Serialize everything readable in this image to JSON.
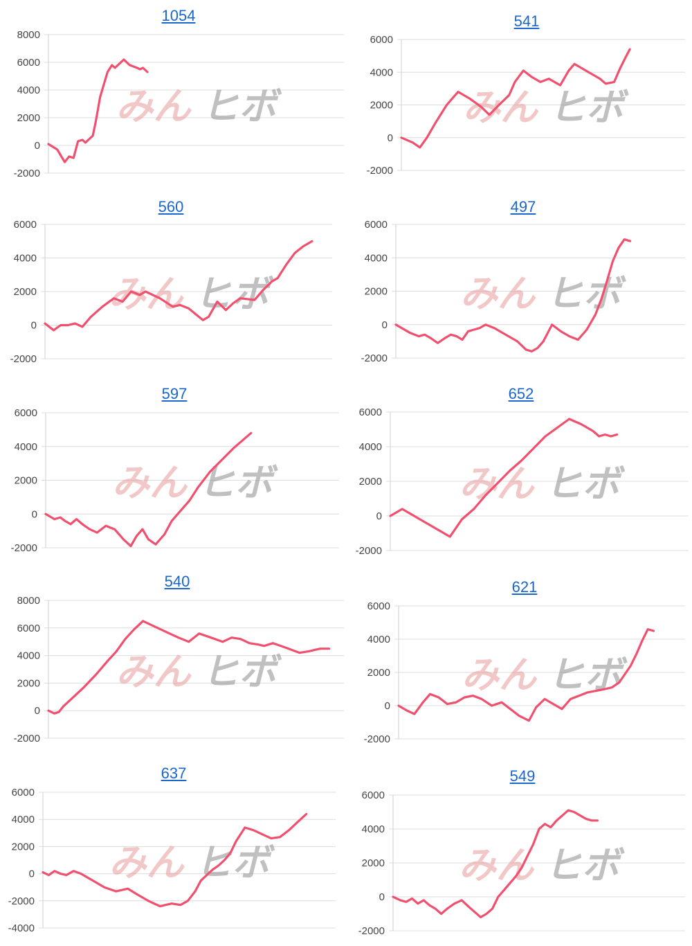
{
  "watermark": {
    "part1": "みん",
    "part2": "ヒボ",
    "color1": "#e79a9a",
    "color2": "#8e8e8e"
  },
  "colors": {
    "line": "#f0506e",
    "title_link": "#1a66cc",
    "grid": "#dcdcdc"
  },
  "chart_data": [
    {
      "type": "line",
      "title": "1054",
      "ylim": [
        -2000,
        8000
      ],
      "yticks": [
        -2000,
        0,
        2000,
        4000,
        6000,
        8000
      ],
      "grid": true,
      "xmax": 1000,
      "x": [
        0,
        30,
        55,
        70,
        85,
        100,
        115,
        125,
        135,
        150,
        160,
        175,
        200,
        215,
        225,
        240,
        255,
        275,
        300,
        310,
        320,
        330,
        335
      ],
      "y": [
        100,
        -300,
        -1200,
        -800,
        -900,
        300,
        400,
        200,
        400,
        700,
        1700,
        3500,
        5300,
        5800,
        5600,
        5900,
        6200,
        5800,
        5600,
        5500,
        5600,
        5400,
        5300
      ]
    },
    {
      "type": "line",
      "title": "541",
      "ylim": [
        -2000,
        6000
      ],
      "yticks": [
        -2000,
        0,
        2000,
        4000,
        6000
      ],
      "grid": true,
      "xmax": 1000,
      "x": [
        0,
        40,
        65,
        90,
        120,
        160,
        200,
        240,
        280,
        310,
        350,
        380,
        400,
        430,
        460,
        490,
        520,
        560,
        590,
        610,
        640,
        670,
        700,
        720,
        750,
        770,
        790,
        805
      ],
      "y": [
        0,
        -300,
        -600,
        0,
        900,
        2000,
        2800,
        2400,
        1900,
        1400,
        2100,
        2600,
        3400,
        4100,
        3700,
        3400,
        3600,
        3200,
        4100,
        4500,
        4200,
        3900,
        3600,
        3300,
        3400,
        4200,
        4900,
        5400
      ]
    },
    {
      "type": "line",
      "title": "560",
      "ylim": [
        -2000,
        6000
      ],
      "yticks": [
        -2000,
        0,
        2000,
        4000,
        6000
      ],
      "grid": true,
      "xmax": 1000,
      "x": [
        0,
        30,
        55,
        80,
        105,
        130,
        160,
        200,
        240,
        270,
        300,
        330,
        350,
        400,
        445,
        470,
        500,
        550,
        570,
        600,
        630,
        655,
        680,
        730,
        760,
        790,
        810,
        840,
        870,
        900,
        930
      ],
      "y": [
        100,
        -300,
        0,
        0,
        100,
        -100,
        500,
        1100,
        1600,
        1400,
        2000,
        1800,
        2000,
        1600,
        1100,
        1200,
        1000,
        300,
        500,
        1400,
        900,
        1300,
        1600,
        1500,
        2100,
        2600,
        2800,
        3600,
        4300,
        4700,
        5000
      ]
    },
    {
      "type": "line",
      "title": "497",
      "ylim": [
        -2000,
        6000
      ],
      "yticks": [
        -2000,
        0,
        2000,
        4000,
        6000
      ],
      "grid": true,
      "xmax": 1000,
      "x": [
        0,
        50,
        80,
        100,
        120,
        145,
        170,
        190,
        210,
        230,
        250,
        270,
        290,
        310,
        340,
        380,
        420,
        450,
        470,
        490,
        510,
        540,
        570,
        600,
        630,
        660,
        690,
        710,
        730,
        750,
        770,
        790,
        810
      ],
      "y": [
        0,
        -500,
        -700,
        -600,
        -800,
        -1100,
        -800,
        -600,
        -700,
        -900,
        -400,
        -300,
        -200,
        0,
        -200,
        -600,
        -1000,
        -1500,
        -1600,
        -1400,
        -1000,
        0,
        -400,
        -700,
        -900,
        -300,
        600,
        1500,
        2600,
        3800,
        4600,
        5100,
        5000
      ]
    },
    {
      "type": "line",
      "title": "597",
      "ylim": [
        -2000,
        6000
      ],
      "yticks": [
        -2000,
        0,
        2000,
        4000,
        6000
      ],
      "grid": true,
      "xmax": 1000,
      "x": [
        0,
        30,
        50,
        65,
        85,
        105,
        125,
        150,
        175,
        205,
        235,
        265,
        290,
        310,
        330,
        350,
        375,
        405,
        430,
        460,
        490,
        520,
        560,
        600,
        640,
        680,
        700
      ],
      "y": [
        0,
        -300,
        -200,
        -400,
        -600,
        -300,
        -600,
        -900,
        -1100,
        -700,
        -900,
        -1500,
        -1900,
        -1300,
        -900,
        -1500,
        -1800,
        -1200,
        -400,
        200,
        800,
        1600,
        2500,
        3200,
        3900,
        4500,
        4800
      ]
    },
    {
      "type": "line",
      "title": "652",
      "ylim": [
        -2000,
        6000
      ],
      "yticks": [
        -2000,
        0,
        2000,
        4000,
        6000
      ],
      "grid": true,
      "xmax": 1000,
      "x": [
        0,
        40,
        80,
        120,
        160,
        200,
        240,
        280,
        320,
        360,
        400,
        440,
        480,
        520,
        560,
        600,
        640,
        680,
        700,
        720,
        740,
        760
      ],
      "y": [
        0,
        400,
        0,
        -400,
        -800,
        -1200,
        -200,
        400,
        1200,
        1900,
        2600,
        3200,
        3900,
        4600,
        5100,
        5600,
        5300,
        4900,
        4600,
        4700,
        4600,
        4700
      ]
    },
    {
      "type": "line",
      "title": "540",
      "ylim": [
        -2000,
        8000
      ],
      "yticks": [
        -2000,
        0,
        2000,
        4000,
        6000,
        8000
      ],
      "grid": true,
      "xmax": 1000,
      "x": [
        0,
        20,
        35,
        50,
        80,
        120,
        160,
        200,
        230,
        260,
        290,
        320,
        350,
        400,
        440,
        475,
        510,
        550,
        590,
        620,
        650,
        680,
        710,
        730,
        760,
        800,
        850,
        880,
        900,
        920,
        950
      ],
      "y": [
        0,
        -200,
        -100,
        300,
        900,
        1700,
        2600,
        3600,
        4300,
        5200,
        5900,
        6500,
        6200,
        5700,
        5300,
        5000,
        5600,
        5300,
        5000,
        5300,
        5200,
        4900,
        4800,
        4700,
        4900,
        4600,
        4200,
        4300,
        4400,
        4500,
        4500
      ]
    },
    {
      "type": "line",
      "title": "621",
      "ylim": [
        -2000,
        6000
      ],
      "yticks": [
        -2000,
        0,
        2000,
        4000,
        6000
      ],
      "grid": true,
      "xmax": 1000,
      "x": [
        0,
        30,
        55,
        85,
        110,
        140,
        170,
        200,
        230,
        260,
        290,
        325,
        360,
        390,
        420,
        455,
        480,
        510,
        540,
        570,
        600,
        630,
        660,
        690,
        720,
        745,
        770,
        790,
        810,
        830,
        850,
        870,
        890
      ],
      "y": [
        0,
        -300,
        -500,
        200,
        700,
        500,
        100,
        200,
        500,
        600,
        400,
        0,
        200,
        -200,
        -600,
        -900,
        -100,
        400,
        100,
        -200,
        400,
        600,
        800,
        900,
        1000,
        1100,
        1400,
        1900,
        2400,
        3100,
        3900,
        4600,
        4500
      ]
    },
    {
      "type": "line",
      "title": "637",
      "ylim": [
        -4000,
        6000
      ],
      "yticks": [
        -4000,
        -2000,
        0,
        2000,
        4000,
        6000
      ],
      "grid": true,
      "xmax": 1000,
      "x": [
        0,
        20,
        40,
        60,
        80,
        105,
        130,
        170,
        210,
        250,
        290,
        320,
        360,
        400,
        440,
        470,
        495,
        520,
        540,
        560,
        580,
        600,
        620,
        640,
        660,
        690,
        720,
        750,
        780,
        810,
        840,
        870,
        900
      ],
      "y": [
        100,
        -100,
        200,
        0,
        -100,
        200,
        0,
        -500,
        -1000,
        -1300,
        -1100,
        -1500,
        -2000,
        -2400,
        -2200,
        -2300,
        -2000,
        -1300,
        -500,
        -100,
        300,
        600,
        1000,
        1500,
        2400,
        3400,
        3200,
        2900,
        2600,
        2700,
        3200,
        3800,
        4400
      ]
    },
    {
      "type": "line",
      "title": "549",
      "ylim": [
        -2000,
        6000
      ],
      "yticks": [
        -2000,
        0,
        2000,
        4000,
        6000
      ],
      "grid": true,
      "xmax": 1000,
      "x": [
        0,
        25,
        45,
        65,
        85,
        105,
        125,
        145,
        165,
        185,
        210,
        235,
        260,
        280,
        300,
        320,
        340,
        360,
        380,
        400,
        420,
        440,
        460,
        480,
        500,
        520,
        540,
        560,
        580,
        600,
        620,
        640,
        660,
        680,
        700
      ],
      "y": [
        0,
        -200,
        -300,
        -100,
        -400,
        -200,
        -500,
        -700,
        -1000,
        -700,
        -400,
        -200,
        -600,
        -900,
        -1200,
        -1000,
        -700,
        0,
        400,
        800,
        1200,
        1700,
        2400,
        3100,
        4000,
        4300,
        4100,
        4500,
        4800,
        5100,
        5000,
        4800,
        4600,
        4500,
        4500
      ]
    }
  ]
}
